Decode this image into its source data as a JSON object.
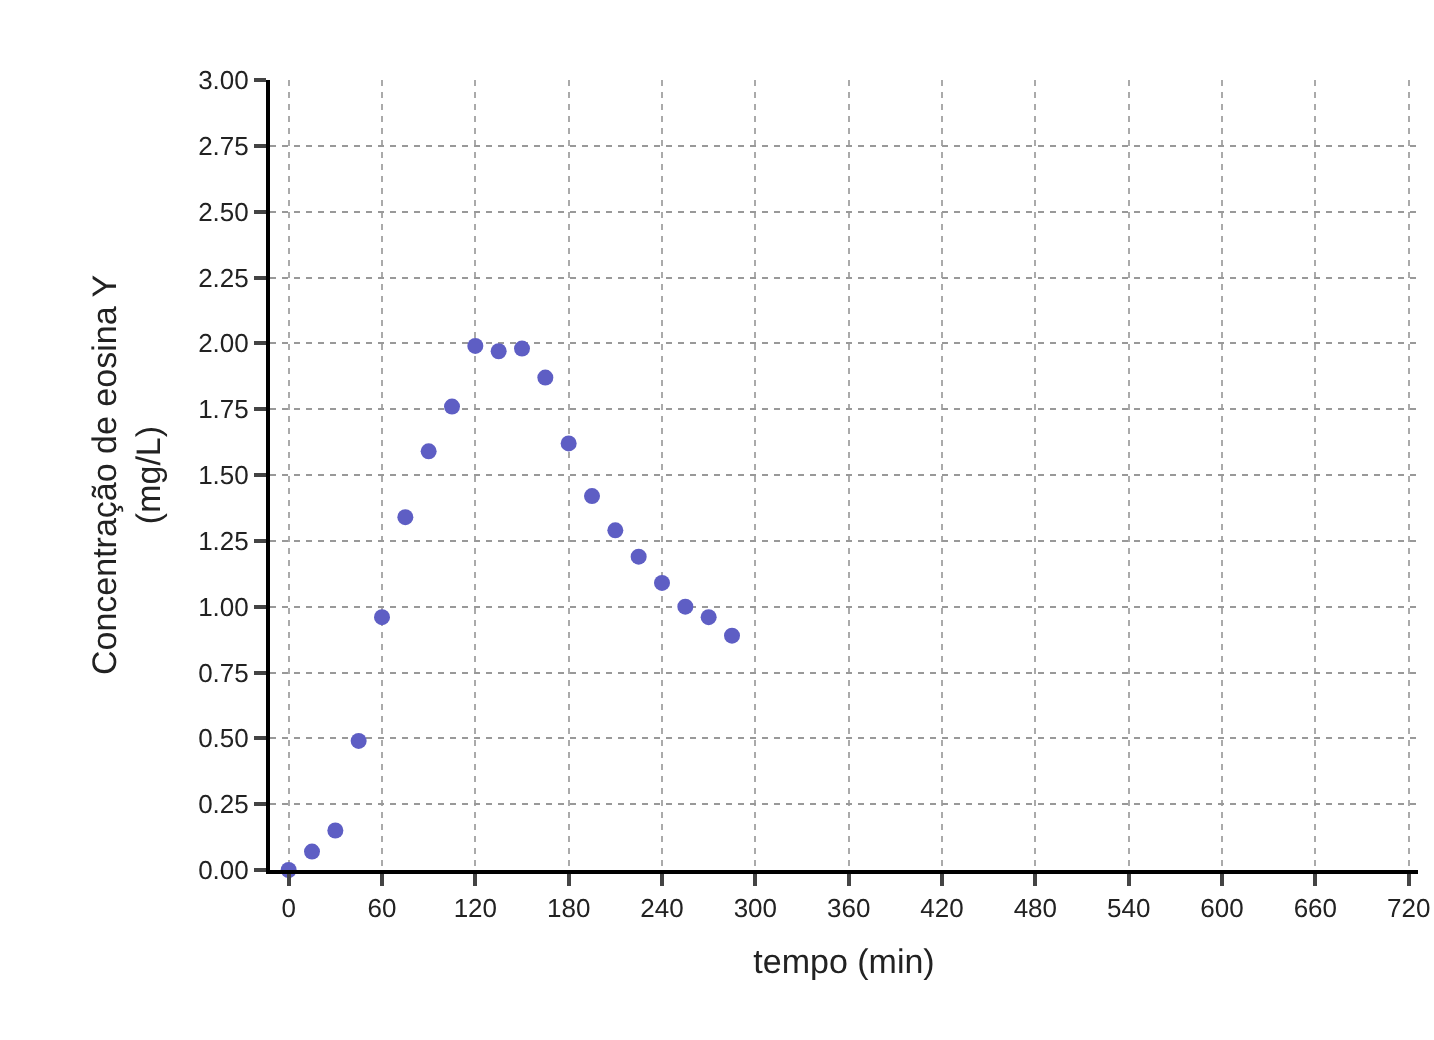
{
  "chart_data": {
    "type": "scatter",
    "xlabel": "tempo (min)",
    "ylabel": "Concentração de eosina Y\n(mg/L)",
    "x": [
      0,
      15,
      30,
      45,
      60,
      75,
      90,
      105,
      120,
      135,
      150,
      165,
      180,
      195,
      210,
      225,
      240,
      255,
      270,
      285
    ],
    "series": [
      {
        "color": "#5e5ec4",
        "values": [
          0.0,
          0.07,
          0.15,
          0.49,
          0.96,
          1.34,
          1.59,
          1.76,
          1.99,
          1.97,
          1.98,
          1.87,
          1.62,
          1.42,
          1.29,
          1.19,
          1.09,
          1.0,
          0.96,
          0.89
        ]
      }
    ],
    "xlim": [
      -12,
      726
    ],
    "xticks": [
      0,
      60,
      120,
      180,
      240,
      300,
      360,
      420,
      480,
      540,
      600,
      660,
      720
    ],
    "ylim": [
      0,
      3
    ],
    "yticks": [
      {
        "value": 0,
        "label": "0.00"
      },
      {
        "value": 0.25,
        "label": "0.25"
      },
      {
        "value": 0.5,
        "label": "0.50"
      },
      {
        "value": 0.75,
        "label": "0.75"
      },
      {
        "value": 1,
        "label": "1.00"
      },
      {
        "value": 1.25,
        "label": "1.25"
      },
      {
        "value": 1.5,
        "label": "1.50"
      },
      {
        "value": 1.75,
        "label": "1.75"
      },
      {
        "value": 2,
        "label": "2.00"
      },
      {
        "value": 2.25,
        "label": "2.25"
      },
      {
        "value": 2.5,
        "label": "2.50"
      },
      {
        "value": 2.75,
        "label": "2.75"
      },
      {
        "value": 3,
        "label": "3.00"
      }
    ],
    "grid": true,
    "marker": "circle"
  }
}
